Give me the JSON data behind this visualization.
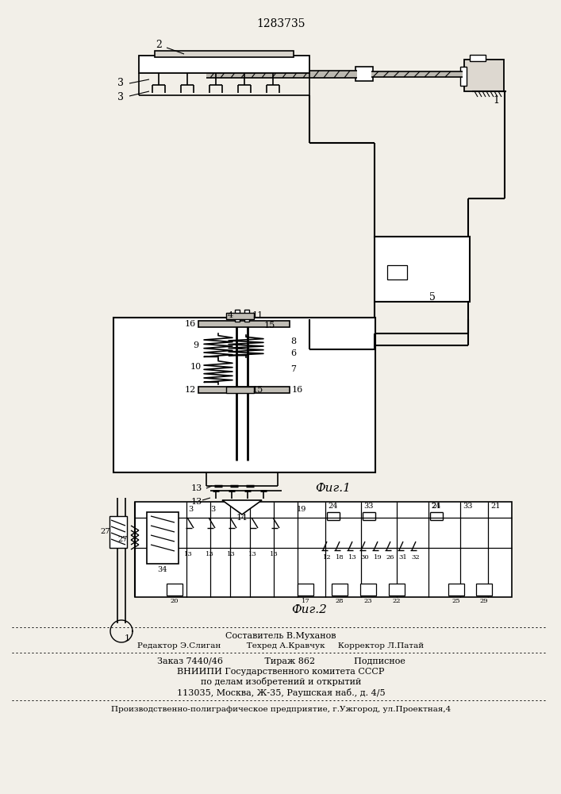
{
  "patent_number": "1283735",
  "bg": "#f2efe8",
  "fig1_label": "Фиг.1",
  "fig2_label": "Фиг.2",
  "footer": [
    "Составитель В.Муханов",
    "Редактор Э.Слиган          Техред А.Кравчук     Корректор Л.Патай",
    "Заказ 7440/46               Тираж 862              Подписное",
    "ВНИИПИ Государственного комитета СССР",
    "по делам изобретений и открытий",
    "113035, Москва, Ж-35, Раушская наб., д. 4/5",
    "Производственно-полиграфическое предприятие, г.Ужгород, ул.Проектная,4"
  ]
}
